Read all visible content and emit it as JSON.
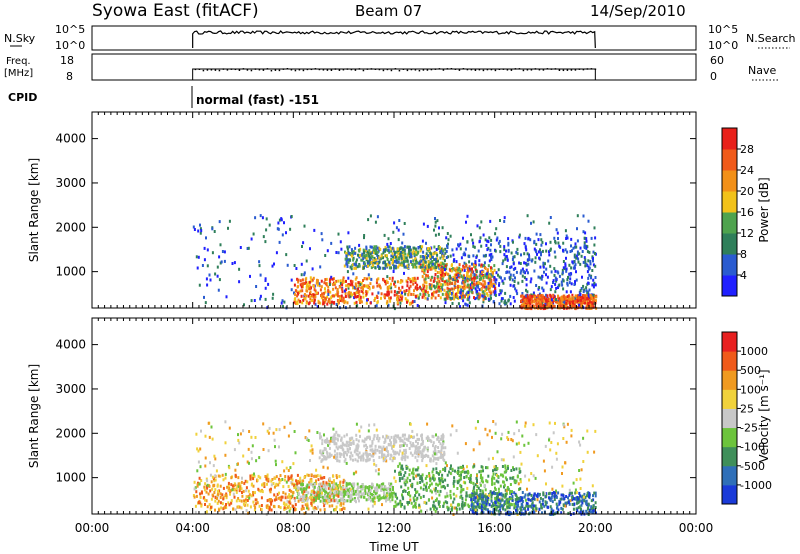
{
  "header": {
    "left": "Syowa East (fitACF)",
    "center": "Beam 07",
    "right": "14/Sep/2010"
  },
  "strips": {
    "nsky": {
      "label": "N.Sky",
      "ticks_left": [
        "10^5",
        "10^0"
      ],
      "ticks_right": [
        "10^5",
        "10^0"
      ],
      "right_label": "N.Search"
    },
    "freq": {
      "label_line1": "Freq.",
      "label_line2": "[MHz]",
      "ticks_left": [
        "18",
        "8"
      ],
      "ticks_right": [
        "60",
        "0"
      ],
      "right_label": "Nave"
    },
    "cpid": {
      "label": "CPID",
      "text": "normal (fast) -151"
    }
  },
  "chart_data": [
    {
      "type": "heatmap",
      "title": "",
      "quantity": "Power",
      "xlabel": "",
      "ylabel": "Slant Range [km]",
      "x_start_hour": 0,
      "x_end_hour": 24,
      "data_window_hours": [
        4,
        20
      ],
      "yticks": [
        1000,
        2000,
        3000,
        4000
      ],
      "colorbar": {
        "label": "Power [dB]",
        "ticks": [
          "4",
          "8",
          "12",
          "16",
          "20",
          "24",
          "28"
        ],
        "colors": [
          "#2020ff",
          "#2a5bd0",
          "#2f7f5a",
          "#4fa34e",
          "#f2c21a",
          "#f29018",
          "#f05a1a",
          "#e8201a"
        ]
      }
    },
    {
      "type": "heatmap",
      "title": "",
      "quantity": "Velocity",
      "xlabel": "Time UT",
      "ylabel": "Slant Range [km]",
      "x_start_hour": 0,
      "x_end_hour": 24,
      "data_window_hours": [
        4,
        20
      ],
      "xticks": [
        "00:00",
        "04:00",
        "08:00",
        "12:00",
        "16:00",
        "20:00",
        "00:00"
      ],
      "yticks": [
        1000,
        2000,
        3000,
        4000
      ],
      "colorbar": {
        "label": "Velocity [m s⁻¹]",
        "ticks": [
          "1000",
          "500",
          "100",
          "25",
          "-25",
          "-100",
          "-500",
          "-1000"
        ],
        "colors": [
          "#1a3ad8",
          "#2f6fb8",
          "#3f8f5a",
          "#6cc43c",
          "#c8c8c8",
          "#f0d23c",
          "#f09a20",
          "#f05a1a",
          "#e82020"
        ]
      }
    }
  ]
}
